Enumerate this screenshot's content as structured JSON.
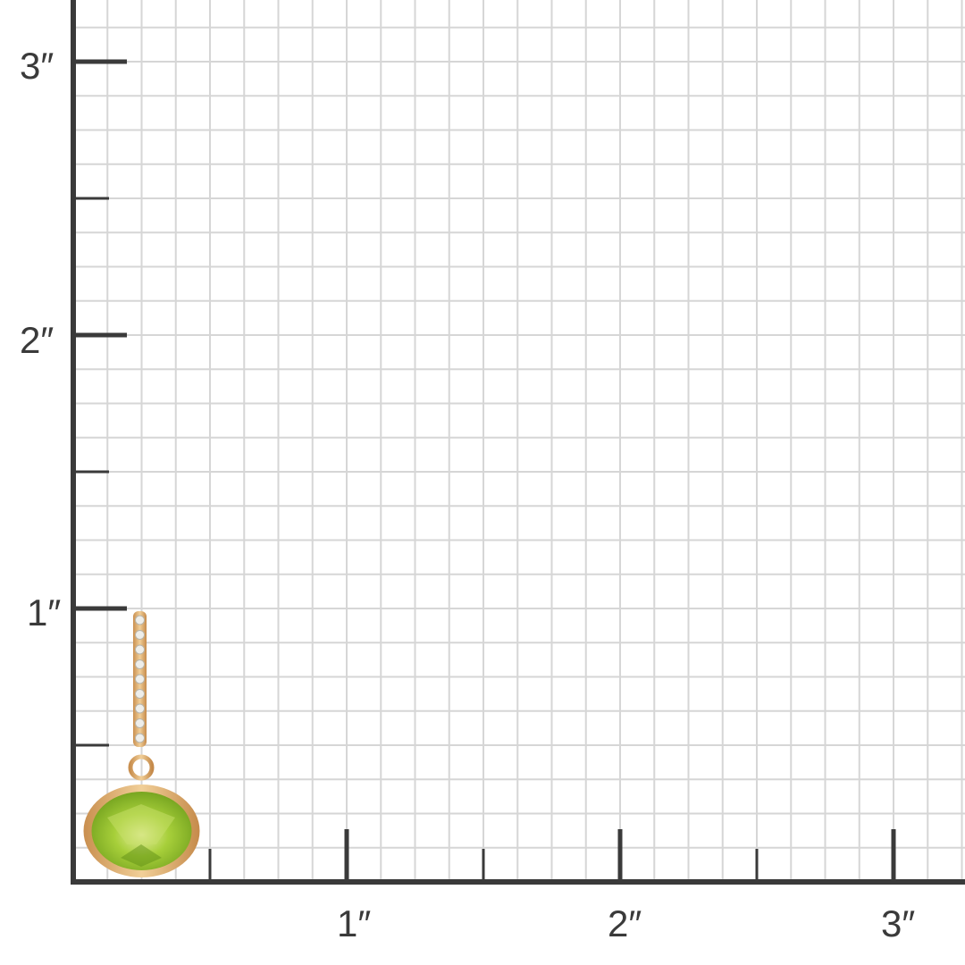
{
  "scale": {
    "unit_mark": "″",
    "x_labels": [
      "1″",
      "2″",
      "3″"
    ],
    "y_labels": [
      "1″",
      "2″",
      "3″"
    ],
    "subdivisions_per_inch": 8
  },
  "colors": {
    "axis": "#3a3a3a",
    "grid": "#d6d6d6",
    "gold": "#d9a868",
    "gem": "#9cc92e"
  },
  "product": {
    "diamond_count": 9
  }
}
